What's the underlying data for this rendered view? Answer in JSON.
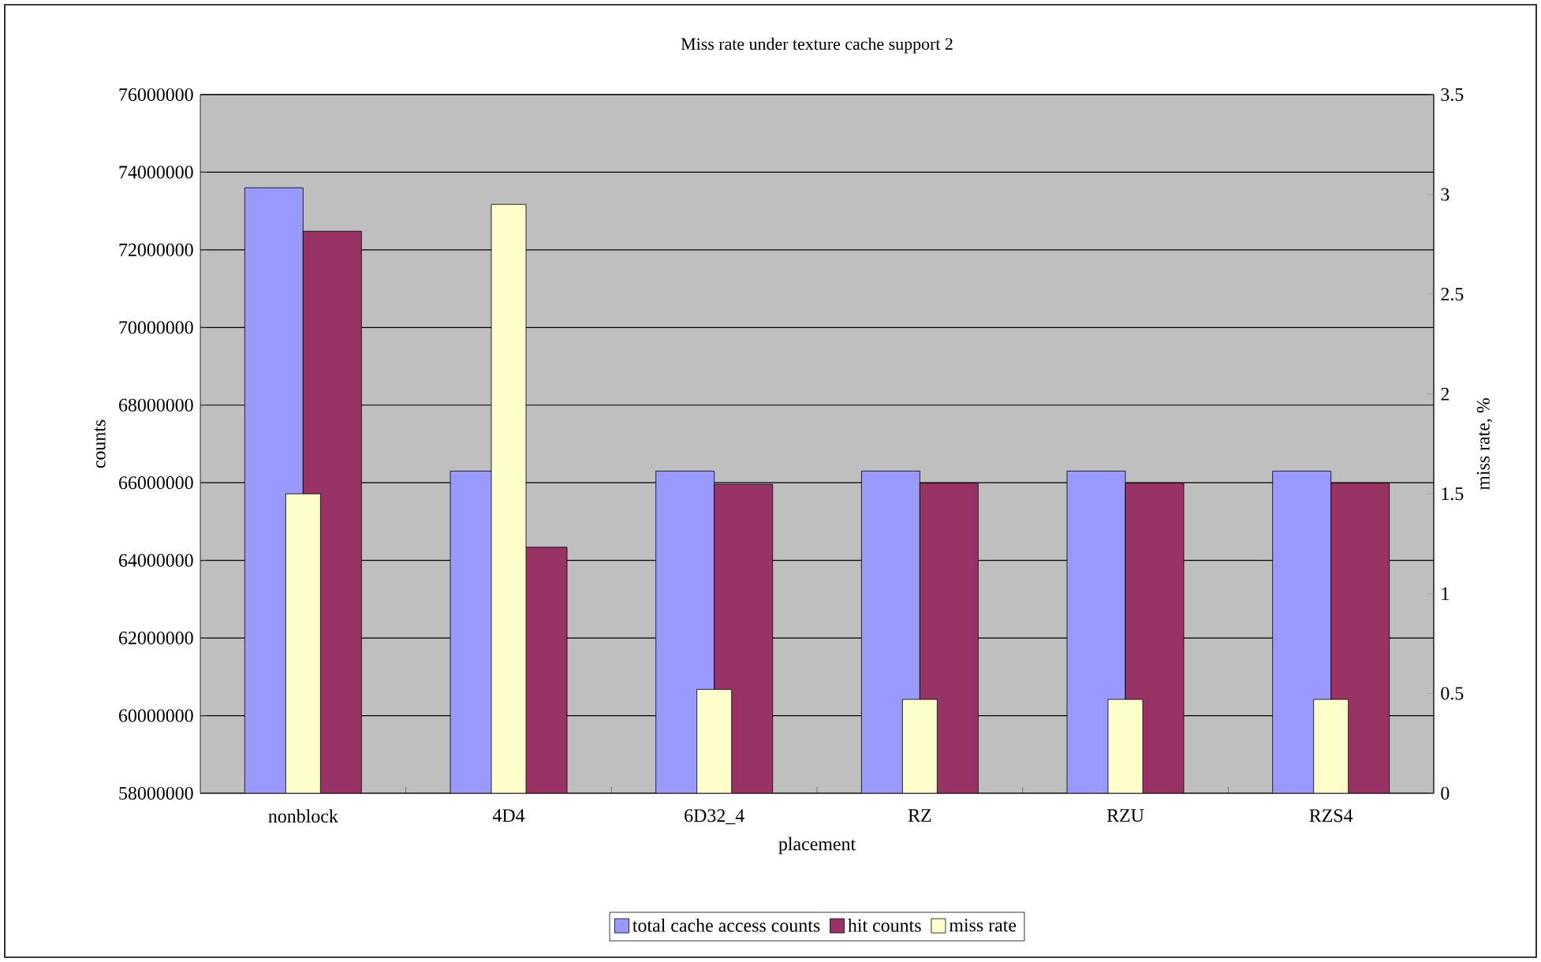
{
  "chart_data": {
    "type": "bar",
    "title": "Miss rate under texture cache support 2",
    "xlabel": "placement",
    "ylabel": "counts",
    "y2label": "miss rate, %",
    "categories": [
      "nonblock",
      "4D4",
      "6D32_4",
      "RZ",
      "RZU",
      "RZS4"
    ],
    "series": [
      {
        "name": "total cache access counts",
        "color": "#9999ff",
        "values": [
          73600000,
          66300000,
          66300000,
          66300000,
          66300000,
          66300000
        ]
      },
      {
        "name": "hit counts",
        "color": "#993366",
        "values": [
          72480000,
          64340000,
          65960000,
          65990000,
          65990000,
          65990000
        ]
      },
      {
        "name": "miss rate",
        "color": "#ffffcc",
        "axis": "y2",
        "values": [
          1.5,
          2.95,
          0.52,
          0.47,
          0.47,
          0.47
        ]
      }
    ],
    "ylim": [
      58000000,
      76000000
    ],
    "yticks": [
      58000000,
      60000000,
      62000000,
      64000000,
      66000000,
      68000000,
      70000000,
      72000000,
      74000000,
      76000000
    ],
    "y2lim": [
      0,
      3.5
    ],
    "y2ticks": [
      0,
      0.5,
      1,
      1.5,
      2,
      2.5,
      3,
      3.5
    ],
    "grid": "y",
    "legend": "bottom"
  }
}
